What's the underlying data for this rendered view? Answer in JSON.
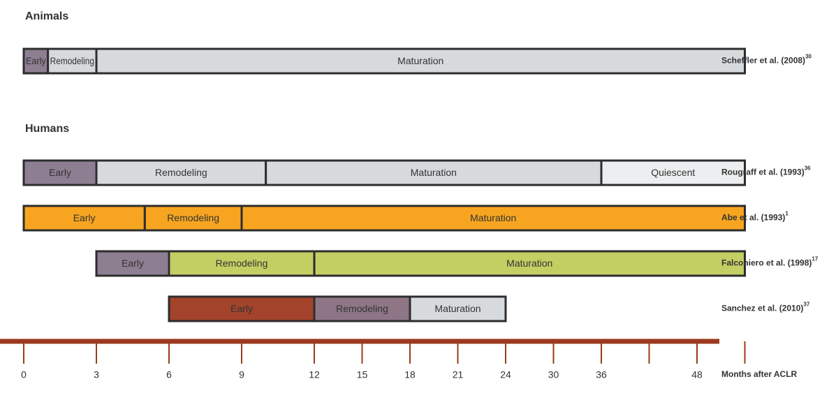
{
  "chart_data": {
    "type": "timeline",
    "groups": [
      {
        "title": "Animals",
        "rows": [
          {
            "label": "Scheffler et al. (2008)",
            "ref": "30",
            "segments": [
              {
                "name": "Early",
                "start": 0,
                "end": 1,
                "color": "#8e7e92"
              },
              {
                "name": "Remodeling",
                "start": 1,
                "end": 3,
                "color": "#d6dadd"
              },
              {
                "name": "Maturation",
                "start": 3,
                "end": 60,
                "color": "#d6dadd"
              }
            ]
          }
        ]
      },
      {
        "title": "Humans",
        "rows": [
          {
            "label": "Rougraff et al. (1993)",
            "ref": "36",
            "segments": [
              {
                "name": "Early",
                "start": 0,
                "end": 3,
                "color": "#8e7e92"
              },
              {
                "name": "Remodeling",
                "start": 3,
                "end": 10,
                "color": "#d6dadd"
              },
              {
                "name": "Maturation",
                "start": 10,
                "end": 36,
                "color": "#d6dadd"
              },
              {
                "name": "Quiescent",
                "start": 36,
                "end": 60,
                "color": "#eceeef"
              }
            ]
          },
          {
            "label": "Abe et al. (1993)",
            "ref": "1",
            "segments": [
              {
                "name": "Early",
                "start": 0,
                "end": 5,
                "color": "#f7a520"
              },
              {
                "name": "Remodeling",
                "start": 5,
                "end": 9,
                "color": "#f7a520"
              },
              {
                "name": "Maturation",
                "start": 9,
                "end": 60,
                "color": "#f7a520"
              }
            ]
          },
          {
            "label": "Falconiero et al. (1998)",
            "ref": "17",
            "segments": [
              {
                "name": "Early",
                "start": 3,
                "end": 6,
                "color": "#8e7e92"
              },
              {
                "name": "Remodeling",
                "start": 6,
                "end": 12,
                "color": "#c3cf63"
              },
              {
                "name": "Maturation",
                "start": 12,
                "end": 60,
                "color": "#c3cf63"
              }
            ]
          },
          {
            "label": "Sanchez et al. (2010)",
            "ref": "37",
            "segments": [
              {
                "name": "Early",
                "start": 6,
                "end": 12,
                "color": "#a3432b"
              },
              {
                "name": "Remodeling",
                "start": 12,
                "end": 18,
                "color": "#8e7686"
              },
              {
                "name": "Maturation",
                "start": 18,
                "end": 24,
                "color": "#d6dadd"
              }
            ]
          }
        ]
      }
    ],
    "xticks": [
      0,
      3,
      6,
      9,
      12,
      15,
      18,
      21,
      24,
      30,
      36,
      {
        "value": 42,
        "label": null
      },
      48,
      {
        "value": 60,
        "label": null
      }
    ],
    "xlabel": "Months after ACLR"
  }
}
